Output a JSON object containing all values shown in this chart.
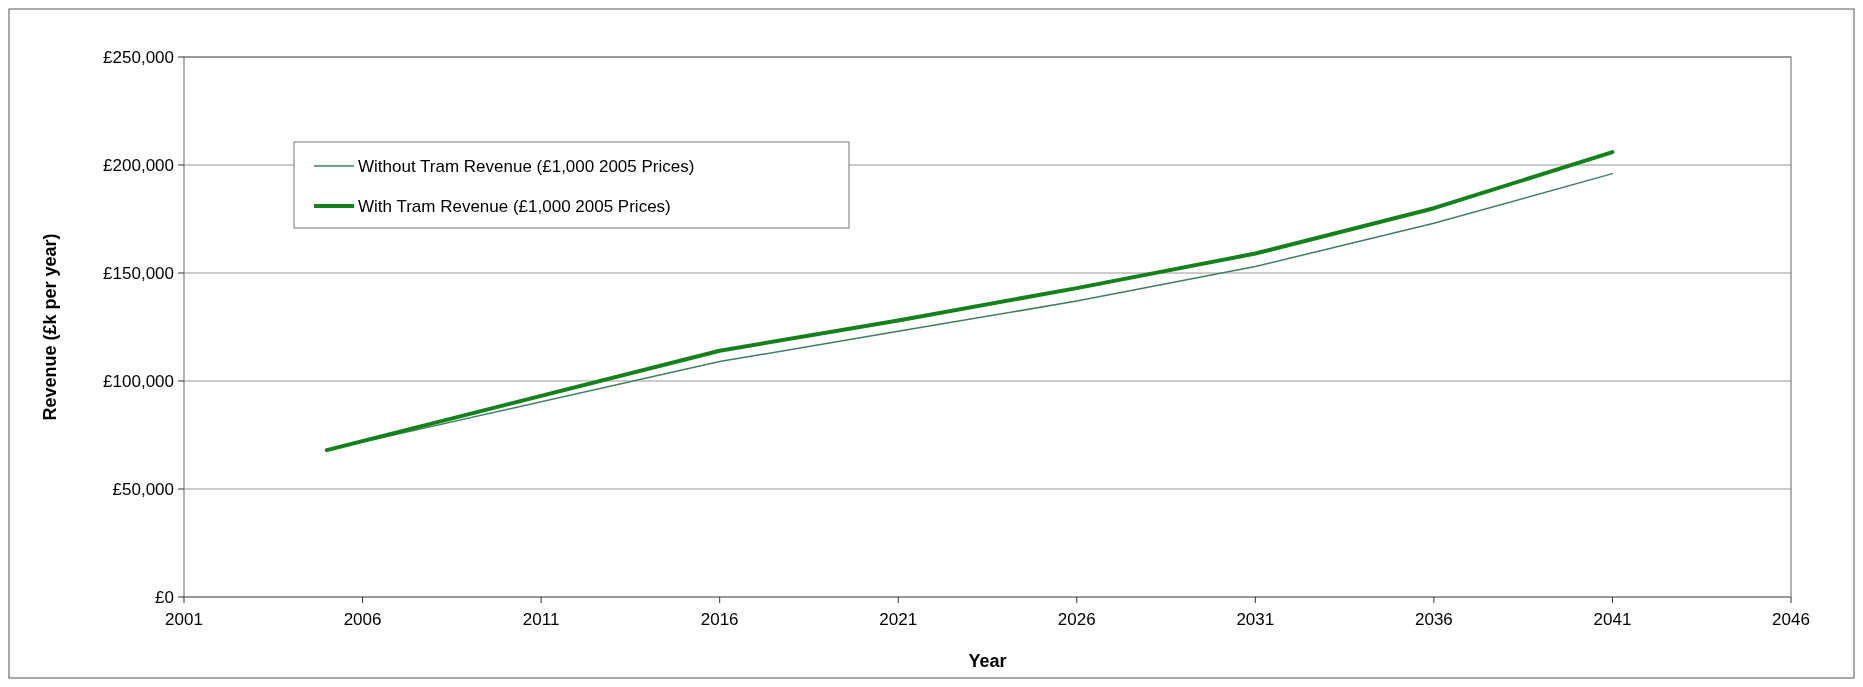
{
  "chart_data": {
    "type": "line",
    "xlabel": "Year",
    "ylabel": "Revenue (£k per year)",
    "xlim": [
      2001,
      2046
    ],
    "xticks": [
      2001,
      2006,
      2011,
      2016,
      2021,
      2026,
      2031,
      2036,
      2041,
      2046
    ],
    "ylim": [
      0,
      250000
    ],
    "yticks": [
      {
        "value": 0,
        "label": "£0"
      },
      {
        "value": 50000,
        "label": "£50,000"
      },
      {
        "value": 100000,
        "label": "£100,000"
      },
      {
        "value": 150000,
        "label": "£150,000"
      },
      {
        "value": 200000,
        "label": "£200,000"
      },
      {
        "value": 250000,
        "label": "£250,000"
      }
    ],
    "x": [
      2005,
      2016,
      2021,
      2026,
      2031,
      2036,
      2041
    ],
    "series": [
      {
        "name": "Without Tram Revenue (£1,000 2005 Prices)",
        "color": "#3f7f5f",
        "values": [
          68000,
          109000,
          123000,
          137000,
          153000,
          173000,
          196000
        ]
      },
      {
        "name": "With Tram Revenue (£1,000 2005 Prices)",
        "color": "#13821b",
        "values": [
          68000,
          114000,
          128000,
          143000,
          159000,
          180000,
          206000
        ]
      }
    ],
    "grid": "y",
    "legend": "top left",
    "marker": "none",
    "line_style": "solid"
  }
}
